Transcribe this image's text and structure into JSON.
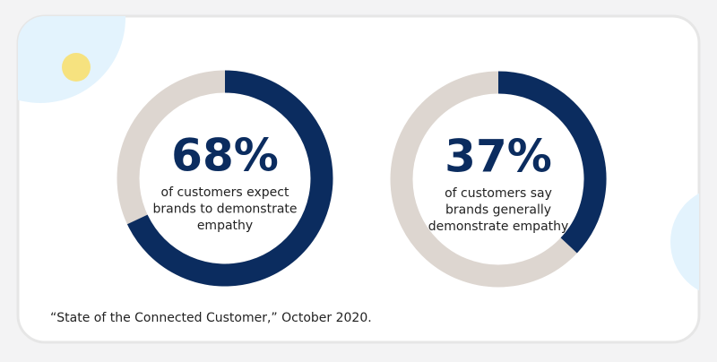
{
  "chart_data": [
    {
      "type": "donut",
      "values": [
        68
      ],
      "value_labels": [
        "68%"
      ],
      "color": "#0b2c5f",
      "track_color": "#ddd6d0",
      "description": [
        "of customers expect",
        "brands to demonstrate",
        "empathy"
      ]
    },
    {
      "type": "donut",
      "values": [
        37
      ],
      "value_labels": [
        "37%"
      ],
      "color": "#0b2c5f",
      "track_color": "#ddd6d0",
      "description": [
        "of customers say",
        "brands generally",
        "demonstrate empathy"
      ]
    }
  ],
  "source": "“State of the Connected Customer,” October 2020."
}
